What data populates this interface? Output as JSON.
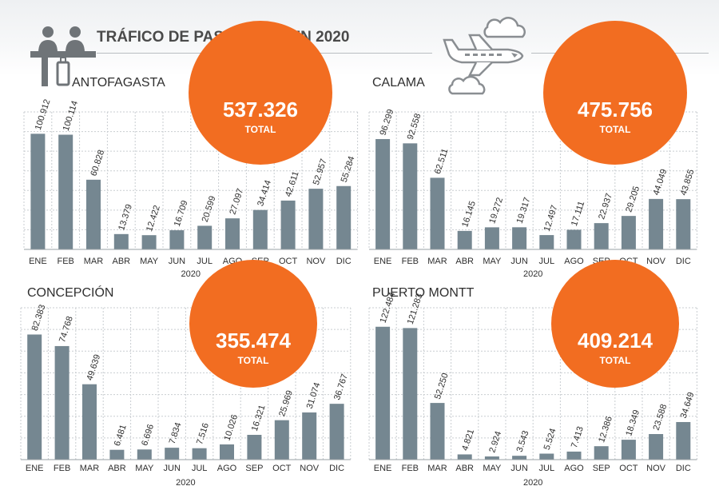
{
  "page": {
    "title": "TRÁFICO DE PASAJEROS EN 2020",
    "icons": [
      "passengers-icon",
      "airplane-clouds-icon"
    ],
    "colors": {
      "bar": "#758791",
      "total_circle": "#f26d21",
      "grid": "#c9cdd1",
      "text": "#3a3a3a"
    }
  },
  "chart_data": [
    {
      "type": "bar",
      "title": "ANTOFAGASTA",
      "total_value": "537.326",
      "total_label": "TOTAL",
      "xlabel": "2020",
      "categories": [
        "ENE",
        "FEB",
        "MAR",
        "ABR",
        "MAY",
        "JUN",
        "JUL",
        "AGO",
        "SEP",
        "OCT",
        "NOV",
        "DIC"
      ],
      "values": [
        100912,
        100114,
        60828,
        13379,
        12422,
        16709,
        20599,
        27097,
        34414,
        42611,
        52957,
        55284
      ],
      "data_labels": [
        "100.912",
        "100.114",
        "60.828",
        "13.379",
        "12.422",
        "16.709",
        "20.599",
        "27.097",
        "34.414",
        "42.611",
        "52.957",
        "55.284"
      ],
      "ylim": [
        0,
        120000
      ],
      "grid": true
    },
    {
      "type": "bar",
      "title": "CALAMA",
      "total_value": "475.756",
      "total_label": "TOTAL",
      "xlabel": "2020",
      "categories": [
        "ENE",
        "FEB",
        "MAR",
        "ABR",
        "MAY",
        "JUN",
        "JUL",
        "AGO",
        "SEP",
        "OCT",
        "NOV",
        "DIC"
      ],
      "values": [
        96299,
        92558,
        62511,
        16145,
        19272,
        19317,
        12497,
        17111,
        22937,
        29205,
        44049,
        43855
      ],
      "data_labels": [
        "96.299",
        "92.558",
        "62.511",
        "16.145",
        "19.272",
        "19.317",
        "12.497",
        "17.111",
        "22.937",
        "29.205",
        "44.049",
        "43.855"
      ],
      "ylim": [
        0,
        120000
      ],
      "grid": true
    },
    {
      "type": "bar",
      "title": "CONCEPCIÓN",
      "total_value": "355.474",
      "total_label": "TOTAL",
      "xlabel": "2020",
      "categories": [
        "ENE",
        "FEB",
        "MAR",
        "ABR",
        "MAY",
        "JUN",
        "JUL",
        "AGO",
        "SEP",
        "OCT",
        "NOV",
        "DIC"
      ],
      "values": [
        82383,
        74768,
        49639,
        6481,
        6696,
        7834,
        7516,
        10026,
        16321,
        25969,
        31074,
        36767
      ],
      "data_labels": [
        "82.383",
        "74.768",
        "49.639",
        "6.481",
        "6.696",
        "7.834",
        "7.516",
        "10.026",
        "16.321",
        "25.969",
        "31.074",
        "36.767"
      ],
      "ylim": [
        0,
        100000
      ],
      "grid": true
    },
    {
      "type": "bar",
      "title": "PUERTO MONTT",
      "total_value": "409.214",
      "total_label": "TOTAL",
      "xlabel": "2020",
      "categories": [
        "ENE",
        "FEB",
        "MAR",
        "ABR",
        "MAY",
        "JUN",
        "JUL",
        "AGO",
        "SEP",
        "OCT",
        "NOV",
        "DIC"
      ],
      "values": [
        122484,
        121283,
        52250,
        4821,
        2924,
        3543,
        5524,
        7413,
        12386,
        18349,
        23588,
        34649
      ],
      "data_labels": [
        "122.484",
        "121.283",
        "52.250",
        "4.821",
        "2.924",
        "3.543",
        "5.524",
        "7.413",
        "12.386",
        "18.349",
        "23.588",
        "34.649"
      ],
      "ylim": [
        0,
        140000
      ],
      "grid": true
    }
  ]
}
